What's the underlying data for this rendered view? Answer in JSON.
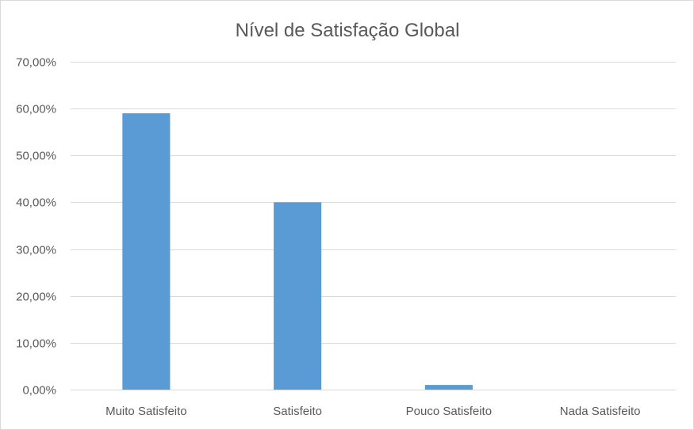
{
  "chart_data": {
    "type": "bar",
    "title": "Nível de Satisfação Global",
    "xlabel": "",
    "ylabel": "",
    "categories": [
      "Muito Satisfeito",
      "Satisfeito",
      "Pouco Satisfeito",
      "Nada Satisfeito"
    ],
    "values": [
      0.59,
      0.4,
      0.01,
      0.0
    ],
    "ylim": [
      0,
      0.7
    ],
    "yticks": [
      0,
      0.1,
      0.2,
      0.3,
      0.4,
      0.5,
      0.6,
      0.7
    ],
    "ytick_labels": [
      "0,00%",
      "10,00%",
      "20,00%",
      "30,00%",
      "40,00%",
      "50,00%",
      "60,00%",
      "70,00%"
    ],
    "grid": true,
    "bar_color": "#5b9bd5",
    "grid_color": "#d9d9d9",
    "legend": "none"
  }
}
